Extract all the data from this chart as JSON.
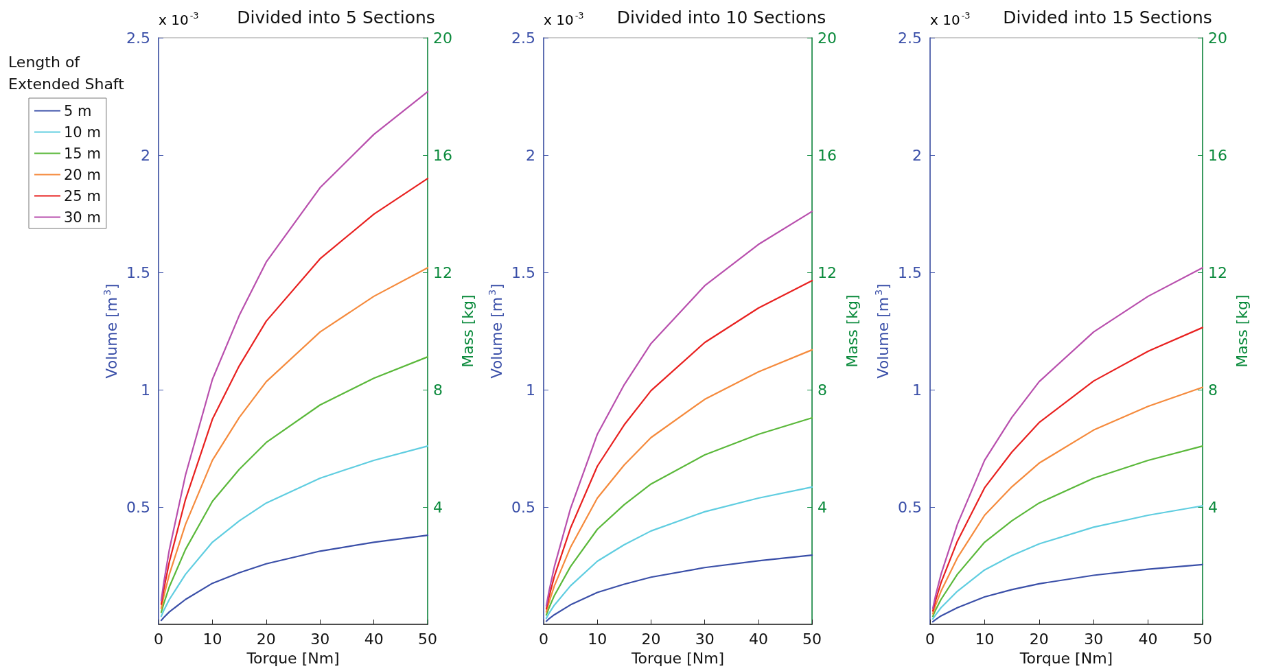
{
  "chart_data": [
    {
      "type": "line",
      "title": "Divided into 5 Sections",
      "xlabel": "Torque [Nm]",
      "ylabel": "Volume [m$^{3}$]",
      "y2label": "Mass [kg]",
      "legend_title": "Length of Extended Shaft",
      "annotations": [
        "x 10$^{-3}$"
      ],
      "x": [
        0.5,
        1,
        2,
        5,
        10,
        15,
        20,
        30,
        40,
        50
      ],
      "xlim": [
        0,
        50
      ],
      "xticks": [
        0,
        10,
        20,
        30,
        40,
        50
      ],
      "ylim": [
        0,
        2.5
      ],
      "yticks": [
        0.5,
        1,
        1.5,
        2,
        2.5
      ],
      "y2lim": [
        0,
        20
      ],
      "y2ticks": [
        4,
        8,
        12,
        16,
        20
      ],
      "legend": "left",
      "marker": "none",
      "line_style": "solid",
      "series": [
        {
          "name": "5 m",
          "color": "#3a4fa8",
          "values": [
            0.017,
            0.03,
            0.053,
            0.106,
            0.175,
            0.22,
            0.258,
            0.312,
            0.35,
            0.38
          ]
        },
        {
          "name": "10 m",
          "color": "#5fcde0",
          "values": [
            0.034,
            0.061,
            0.106,
            0.213,
            0.35,
            0.441,
            0.517,
            0.623,
            0.699,
            0.76
          ]
        },
        {
          "name": "15 m",
          "color": "#5ab83a",
          "values": [
            0.051,
            0.091,
            0.16,
            0.319,
            0.524,
            0.661,
            0.775,
            0.935,
            1.049,
            1.14
          ]
        },
        {
          "name": "20 m",
          "color": "#f58a3c",
          "values": [
            0.068,
            0.122,
            0.213,
            0.426,
            0.699,
            0.882,
            1.034,
            1.246,
            1.398,
            1.52
          ]
        },
        {
          "name": "25 m",
          "color": "#e8201f",
          "values": [
            0.086,
            0.152,
            0.266,
            0.532,
            0.874,
            1.102,
            1.292,
            1.558,
            1.748,
            1.9
          ]
        },
        {
          "name": "30 m",
          "color": "#b84fad",
          "values": [
            0.102,
            0.182,
            0.318,
            0.636,
            1.044,
            1.317,
            1.544,
            1.861,
            2.088,
            2.27
          ]
        }
      ]
    },
    {
      "type": "line",
      "title": "Divided into 10 Sections",
      "xlabel": "Torque [Nm]",
      "ylabel": "Volume [m$^{3}$]",
      "y2label": "Mass [kg]",
      "annotations": [
        "x 10$^{-3}$"
      ],
      "x": [
        0.5,
        1,
        2,
        5,
        10,
        15,
        20,
        30,
        40,
        50
      ],
      "xlim": [
        0,
        50
      ],
      "xticks": [
        0,
        10,
        20,
        30,
        40,
        50
      ],
      "ylim": [
        0,
        2.5
      ],
      "yticks": [
        0.5,
        1,
        1.5,
        2,
        2.5
      ],
      "y2lim": [
        0,
        20
      ],
      "y2ticks": [
        4,
        8,
        12,
        16,
        20
      ],
      "legend": false,
      "marker": "none",
      "line_style": "solid",
      "series": [
        {
          "color": "#3a4fa8",
          "values": [
            0.013,
            0.024,
            0.041,
            0.083,
            0.136,
            0.171,
            0.201,
            0.242,
            0.271,
            0.295
          ]
        },
        {
          "color": "#5fcde0",
          "values": [
            0.026,
            0.047,
            0.082,
            0.164,
            0.269,
            0.339,
            0.398,
            0.48,
            0.538,
            0.585
          ]
        },
        {
          "color": "#5ab83a",
          "values": [
            0.04,
            0.07,
            0.123,
            0.246,
            0.405,
            0.51,
            0.598,
            0.722,
            0.81,
            0.88
          ]
        },
        {
          "color": "#f58a3c",
          "values": [
            0.053,
            0.094,
            0.164,
            0.328,
            0.538,
            0.679,
            0.796,
            0.959,
            1.076,
            1.17
          ]
        },
        {
          "color": "#e8201f",
          "values": [
            0.066,
            0.117,
            0.205,
            0.41,
            0.674,
            0.85,
            0.996,
            1.201,
            1.348,
            1.465
          ]
        },
        {
          "color": "#b84fad",
          "values": [
            0.079,
            0.141,
            0.246,
            0.493,
            0.81,
            1.021,
            1.197,
            1.443,
            1.619,
            1.76
          ]
        }
      ]
    },
    {
      "type": "line",
      "title": "Divided into 15 Sections",
      "xlabel": "Torque [Nm]",
      "ylabel": "Volume [m$^{3}$]",
      "y2label": "Mass [kg]",
      "annotations": [
        "x 10$^{-3}$"
      ],
      "x": [
        0.5,
        1,
        2,
        5,
        10,
        15,
        20,
        30,
        40,
        50
      ],
      "xlim": [
        0,
        50
      ],
      "xticks": [
        0,
        10,
        20,
        30,
        40,
        50
      ],
      "ylim": [
        0,
        2.5
      ],
      "yticks": [
        0.5,
        1,
        1.5,
        2,
        2.5
      ],
      "y2lim": [
        0,
        20
      ],
      "y2ticks": [
        4,
        8,
        12,
        16,
        20
      ],
      "legend": false,
      "marker": "none",
      "line_style": "solid",
      "series": [
        {
          "color": "#3a4fa8",
          "values": [
            0.011,
            0.02,
            0.036,
            0.071,
            0.117,
            0.148,
            0.173,
            0.209,
            0.235,
            0.255
          ]
        },
        {
          "color": "#5fcde0",
          "values": [
            0.023,
            0.04,
            0.071,
            0.141,
            0.232,
            0.293,
            0.343,
            0.414,
            0.465,
            0.505
          ]
        },
        {
          "color": "#5ab83a",
          "values": [
            0.034,
            0.061,
            0.106,
            0.213,
            0.35,
            0.441,
            0.517,
            0.623,
            0.699,
            0.76
          ]
        },
        {
          "color": "#f58a3c",
          "values": [
            0.045,
            0.081,
            0.141,
            0.283,
            0.465,
            0.586,
            0.687,
            0.828,
            0.929,
            1.01
          ]
        },
        {
          "color": "#e8201f",
          "values": [
            0.057,
            0.101,
            0.177,
            0.354,
            0.582,
            0.734,
            0.86,
            1.037,
            1.164,
            1.265
          ]
        },
        {
          "color": "#b84fad",
          "values": [
            0.068,
            0.122,
            0.213,
            0.426,
            0.699,
            0.882,
            1.034,
            1.246,
            1.398,
            1.52
          ]
        }
      ]
    }
  ]
}
